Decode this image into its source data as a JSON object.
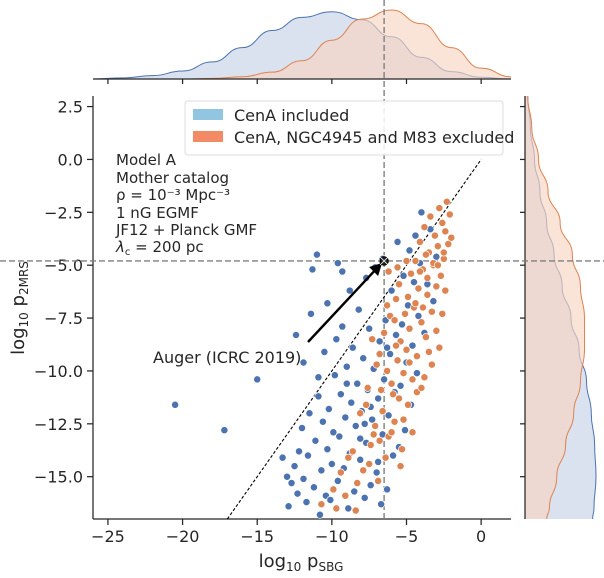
{
  "chart_data": {
    "type": "scatter",
    "xlabel_main": "log",
    "xlabel_sub": "10",
    "xlabel_tail": " p",
    "xlabel_subscript": "SBG",
    "ylabel_main": "log",
    "ylabel_sub": "10",
    "ylabel_tail": " p",
    "ylabel_subscript": "2MRS",
    "xlim": [
      -26,
      2
    ],
    "ylim": [
      -17,
      3
    ],
    "xticks": [
      -25,
      -20,
      -15,
      -10,
      -5,
      0
    ],
    "xtick_labels": [
      "−25",
      "−20",
      "−15",
      "−10",
      "−5",
      "0"
    ],
    "yticks": [
      2.5,
      0.0,
      -2.5,
      -5.0,
      -7.5,
      -10.0,
      -12.5,
      -15.0
    ],
    "ytick_labels": [
      "2.5",
      "0.0",
      "−2.5",
      "−5.0",
      "−7.5",
      "−10.0",
      "−12.5",
      "−15.0"
    ],
    "legend": {
      "placement": "top-right",
      "entries": [
        {
          "label": "CenA included",
          "color": "#92c6e0"
        },
        {
          "label": "CenA, NGC4945 and M83 excluded",
          "color": "#f28a66"
        }
      ]
    },
    "info_text": {
      "model": "Model A",
      "catalog": "Mother catalog",
      "rho": "ρ = 10⁻³ Mpc⁻³",
      "egmf": "1 nG EGMF",
      "gmf": "JF12 + Planck GMF",
      "lambda": "λ",
      "lambda_sub": "c",
      "lambda_tail": " = 200 pc"
    },
    "auger_point": {
      "x": -6.5,
      "y": -4.8,
      "label": "Auger (ICRC 2019)"
    },
    "diagonal_line": {
      "x": [
        -17,
        0
      ],
      "y": [
        -17,
        0
      ]
    },
    "colors": {
      "blue": "#4c72b0",
      "orange": "#dd8452",
      "blue_fill": "#c6d1e6",
      "orange_fill": "#f7d4c1"
    },
    "series": [
      {
        "name": "CenA included",
        "color": "#4c72b0",
        "points": [
          [
            -20.5,
            -11.6
          ],
          [
            -17.2,
            -12.8
          ],
          [
            -15.0,
            -10.4
          ],
          [
            -13.3,
            -14.1
          ],
          [
            -13.0,
            -15.0
          ],
          [
            -12.9,
            -16.4
          ],
          [
            -12.7,
            -15.3
          ],
          [
            -12.5,
            -14.5
          ],
          [
            -12.3,
            -15.8
          ],
          [
            -12.2,
            -13.8
          ],
          [
            -12.0,
            -12.7
          ],
          [
            -11.9,
            -15.1
          ],
          [
            -11.7,
            -16.2
          ],
          [
            -11.6,
            -14.0
          ],
          [
            -11.5,
            -12.0
          ],
          [
            -11.4,
            -7.3
          ],
          [
            -11.3,
            -5.2
          ],
          [
            -11.2,
            -15.5
          ],
          [
            -11.1,
            -13.3
          ],
          [
            -11.0,
            -4.5
          ],
          [
            -10.9,
            -11.2
          ],
          [
            -10.8,
            -16.8
          ],
          [
            -10.7,
            -14.7
          ],
          [
            -10.6,
            -12.4
          ],
          [
            -10.5,
            -9.1
          ],
          [
            -10.4,
            -15.9
          ],
          [
            -10.3,
            -13.7
          ],
          [
            -10.2,
            -11.8
          ],
          [
            -10.1,
            -16.1
          ],
          [
            -10.0,
            -14.4
          ],
          [
            -9.9,
            -12.9
          ],
          [
            -9.8,
            -10.2
          ],
          [
            -9.7,
            -8.5
          ],
          [
            -9.6,
            -15.2
          ],
          [
            -9.5,
            -13.1
          ],
          [
            -9.4,
            -11.1
          ],
          [
            -9.3,
            -5.3
          ],
          [
            -9.2,
            -14.6
          ],
          [
            -9.1,
            -12.2
          ],
          [
            -9.0,
            -9.8
          ],
          [
            -8.9,
            -16.5
          ],
          [
            -8.8,
            -13.9
          ],
          [
            -8.7,
            -11.5
          ],
          [
            -8.6,
            -8.9
          ],
          [
            -8.5,
            -15.7
          ],
          [
            -8.4,
            -12.6
          ],
          [
            -8.3,
            -10.6
          ],
          [
            -8.2,
            -7.1
          ],
          [
            -8.1,
            -14.2
          ],
          [
            -8.0,
            -11.9
          ],
          [
            -7.9,
            -9.4
          ],
          [
            -7.8,
            -16.0
          ],
          [
            -7.7,
            -13.4
          ],
          [
            -7.6,
            -10.9
          ],
          [
            -7.5,
            -8.0
          ],
          [
            -7.4,
            -15.4
          ],
          [
            -7.3,
            -12.3
          ],
          [
            -7.2,
            -9.9
          ],
          [
            -7.1,
            -5.1
          ],
          [
            -7.0,
            -14.8
          ],
          [
            -6.9,
            -11.3
          ],
          [
            -6.8,
            -8.6
          ],
          [
            -6.7,
            -16.3
          ],
          [
            -6.6,
            -13.0
          ],
          [
            -6.5,
            -10.4
          ],
          [
            -6.4,
            -7.6
          ],
          [
            -6.3,
            -15.6
          ],
          [
            -6.2,
            -12.1
          ],
          [
            -6.1,
            -9.2
          ],
          [
            -6.0,
            -6.2
          ],
          [
            -5.9,
            -14.0
          ],
          [
            -5.8,
            -11.0
          ],
          [
            -5.7,
            -8.3
          ],
          [
            -5.6,
            -3.9
          ],
          [
            -5.5,
            -13.6
          ],
          [
            -5.4,
            -10.7
          ],
          [
            -5.3,
            -7.8
          ],
          [
            -5.2,
            -5.5
          ],
          [
            -5.1,
            -12.8
          ],
          [
            -5.0,
            -9.6
          ],
          [
            -4.9,
            -6.9
          ],
          [
            -4.8,
            -4.3
          ],
          [
            -4.7,
            -11.6
          ],
          [
            -4.6,
            -8.8
          ],
          [
            -4.5,
            -5.8
          ],
          [
            -4.4,
            -3.6
          ],
          [
            -4.3,
            -10.1
          ],
          [
            -4.2,
            -7.4
          ],
          [
            -4.1,
            -4.9
          ],
          [
            -4.0,
            -2.5
          ],
          [
            -3.8,
            -8.2
          ],
          [
            -3.6,
            -5.9
          ],
          [
            -3.4,
            -3.3
          ],
          [
            -3.2,
            -6.7
          ],
          [
            -3.0,
            -4.6
          ],
          [
            -9.6,
            -4.9
          ],
          [
            -10.3,
            -6.8
          ],
          [
            -8.8,
            -6.2
          ],
          [
            -7.7,
            -5.6
          ],
          [
            -12.4,
            -8.3
          ],
          [
            -9.3,
            -7.9
          ],
          [
            -6.6,
            -4.7
          ],
          [
            -8.1,
            -13.2
          ],
          [
            -7.4,
            -11.7
          ],
          [
            -6.9,
            -14.3
          ],
          [
            -10.9,
            -10.3
          ],
          [
            -11.9,
            -9.6
          ],
          [
            -9.0,
            -10.6
          ],
          [
            -7.8,
            -12.5
          ],
          [
            -6.3,
            -8.9
          ]
        ]
      },
      {
        "name": "CenA, NGC4945 and M83 excluded",
        "color": "#dd8452",
        "points": [
          [
            -10.7,
            -16.3
          ],
          [
            -9.9,
            -15.6
          ],
          [
            -9.1,
            -15.9
          ],
          [
            -8.4,
            -16.6
          ],
          [
            -7.9,
            -14.7
          ],
          [
            -7.4,
            -13.5
          ],
          [
            -7.1,
            -12.6
          ],
          [
            -6.9,
            -15.2
          ],
          [
            -6.6,
            -11.9
          ],
          [
            -6.4,
            -14.1
          ],
          [
            -6.2,
            -13.1
          ],
          [
            -6.0,
            -10.6
          ],
          [
            -5.8,
            -12.4
          ],
          [
            -5.6,
            -9.5
          ],
          [
            -5.5,
            -11.3
          ],
          [
            -5.4,
            -8.6
          ],
          [
            -5.3,
            -13.7
          ],
          [
            -5.2,
            -10.1
          ],
          [
            -5.1,
            -7.3
          ],
          [
            -5.0,
            -9.0
          ],
          [
            -4.9,
            -6.5
          ],
          [
            -4.8,
            -8.0
          ],
          [
            -4.7,
            -5.4
          ],
          [
            -4.6,
            -10.4
          ],
          [
            -4.5,
            -7.0
          ],
          [
            -4.4,
            -4.8
          ],
          [
            -4.3,
            -9.3
          ],
          [
            -4.2,
            -6.1
          ],
          [
            -4.1,
            -3.9
          ],
          [
            -4.0,
            -7.7
          ],
          [
            -3.9,
            -5.2
          ],
          [
            -3.8,
            -3.2
          ],
          [
            -3.7,
            -8.4
          ],
          [
            -3.6,
            -6.4
          ],
          [
            -3.5,
            -4.4
          ],
          [
            -3.4,
            -2.7
          ],
          [
            -3.3,
            -7.2
          ],
          [
            -3.2,
            -5.0
          ],
          [
            -3.1,
            -3.6
          ],
          [
            -3.0,
            -6.0
          ],
          [
            -2.9,
            -4.1
          ],
          [
            -2.8,
            -2.3
          ],
          [
            -2.7,
            -5.5
          ],
          [
            -2.6,
            -3.0
          ],
          [
            -2.5,
            -4.7
          ],
          [
            -2.4,
            -3.4
          ],
          [
            -2.3,
            -2.0
          ],
          [
            -2.2,
            -4.0
          ],
          [
            -2.1,
            -2.6
          ],
          [
            -2.0,
            -3.7
          ],
          [
            -7.6,
            -10.8
          ],
          [
            -7.0,
            -9.7
          ],
          [
            -6.5,
            -8.2
          ],
          [
            -6.1,
            -7.4
          ],
          [
            -5.7,
            -6.6
          ],
          [
            -5.9,
            -11.1
          ],
          [
            -6.8,
            -9.2
          ],
          [
            -7.3,
            -8.5
          ],
          [
            -6.3,
            -6.9
          ],
          [
            -5.5,
            -5.9
          ],
          [
            -8.1,
            -12.0
          ],
          [
            -8.6,
            -13.8
          ],
          [
            -7.7,
            -11.6
          ],
          [
            -6.7,
            -10.9
          ],
          [
            -5.7,
            -8.8
          ],
          [
            -4.9,
            -11.6
          ],
          [
            -4.3,
            -11.0
          ],
          [
            -3.8,
            -10.3
          ],
          [
            -3.3,
            -9.7
          ],
          [
            -2.8,
            -8.9
          ],
          [
            -9.4,
            -14.8
          ],
          [
            -8.9,
            -14.1
          ],
          [
            -7.2,
            -13.0
          ],
          [
            -6.0,
            -12.9
          ],
          [
            -5.2,
            -12.3
          ],
          [
            -4.0,
            -10.8
          ],
          [
            -3.5,
            -9.1
          ],
          [
            -3.0,
            -8.1
          ],
          [
            -2.6,
            -7.3
          ],
          [
            -2.4,
            -6.2
          ],
          [
            -9.7,
            -16.5
          ],
          [
            -8.3,
            -15.3
          ],
          [
            -7.5,
            -14.4
          ],
          [
            -6.8,
            -13.3
          ],
          [
            -4.6,
            -12.9
          ],
          [
            -5.4,
            -14.5
          ],
          [
            -6.3,
            -10.0
          ],
          [
            -4.8,
            -9.6
          ],
          [
            -3.9,
            -7.0
          ],
          [
            -3.6,
            -5.6
          ],
          [
            -4.4,
            -6.8
          ],
          [
            -5.0,
            -4.8
          ],
          [
            -5.6,
            -5.1
          ],
          [
            -6.2,
            -5.3
          ],
          [
            -4.1,
            -5.3
          ],
          [
            -3.7,
            -4.5
          ],
          [
            -3.2,
            -4.9
          ],
          [
            -2.9,
            -5.0
          ],
          [
            -2.5,
            -4.4
          ],
          [
            -5.8,
            -7.6
          ]
        ]
      }
    ],
    "kde_top": {
      "x": [
        -26,
        -24,
        -22,
        -20,
        -18,
        -16,
        -14,
        -12,
        -10,
        -8,
        -6,
        -4,
        -2,
        0,
        2
      ],
      "blue": [
        0.0,
        0.002,
        0.006,
        0.014,
        0.03,
        0.055,
        0.085,
        0.108,
        0.118,
        0.104,
        0.074,
        0.038,
        0.013,
        0.003,
        0.0
      ],
      "orange": [
        0.0,
        0.0,
        0.0,
        0.0,
        0.001,
        0.004,
        0.012,
        0.032,
        0.068,
        0.105,
        0.121,
        0.097,
        0.055,
        0.019,
        0.004
      ]
    },
    "kde_right": {
      "y": [
        3,
        1.5,
        0,
        -1.5,
        -3,
        -4.5,
        -6,
        -7.5,
        -9,
        -10.5,
        -12,
        -13.5,
        -15,
        -16.5,
        -17
      ],
      "blue": [
        0.004,
        0.008,
        0.014,
        0.022,
        0.032,
        0.043,
        0.055,
        0.068,
        0.08,
        0.091,
        0.098,
        0.103,
        0.105,
        0.102,
        0.1
      ],
      "orange": [
        0.004,
        0.01,
        0.02,
        0.034,
        0.052,
        0.07,
        0.082,
        0.088,
        0.088,
        0.082,
        0.072,
        0.06,
        0.047,
        0.036,
        0.032
      ]
    }
  }
}
